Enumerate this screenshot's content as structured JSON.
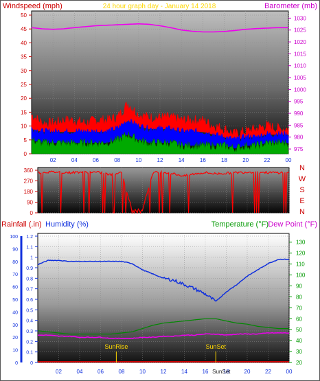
{
  "title": "24 hour graph day - January 14 2018",
  "colors": {
    "wind": "#ff0000",
    "wind_avg": "#0000ff",
    "gust_low": "#00aa00",
    "barometer": "#ee00ee",
    "title": "#ffd700",
    "rain": "#cc0000",
    "humidity": "#1030dd",
    "temperature": "#00aa00",
    "dewpoint": "#ee00ee",
    "sun": "#ffd700"
  },
  "hour_labels": [
    "02",
    "04",
    "06",
    "08",
    "10",
    "12",
    "14",
    "16",
    "18",
    "20",
    "22",
    "00"
  ],
  "chart_data": [
    {
      "type": "line",
      "name_panel": "wind-barometer",
      "labels": {
        "left": "Windspeed (mph)",
        "right": "Barometer (mb)"
      },
      "y_left": {
        "ticks": [
          0,
          5,
          10,
          15,
          20,
          25,
          30,
          35,
          40,
          45,
          50
        ],
        "ylim": [
          0,
          50
        ]
      },
      "y_right": {
        "ticks": [
          975,
          980,
          985,
          990,
          995,
          1000,
          1005,
          1010,
          1015,
          1020,
          1025,
          1030
        ],
        "ylim": [
          973,
          1033
        ]
      },
      "x": [
        0,
        1,
        2,
        3,
        4,
        5,
        6,
        7,
        8,
        9,
        10,
        11,
        12,
        13,
        14,
        15,
        16,
        17,
        18,
        19,
        20,
        21,
        22,
        23,
        24
      ],
      "series": [
        {
          "key": "gust",
          "values": [
            14,
            11,
            11,
            12,
            12,
            11,
            12,
            12,
            13,
            18,
            14,
            13,
            13,
            13,
            12,
            12,
            12,
            10,
            9,
            7,
            8,
            9,
            10,
            9,
            9
          ]
        },
        {
          "key": "average",
          "values": [
            9,
            8,
            8,
            8,
            8,
            8,
            8,
            8,
            9,
            12,
            10,
            9,
            9,
            9,
            8,
            8,
            8,
            7,
            6,
            5,
            6,
            6,
            7,
            7,
            7
          ]
        },
        {
          "key": "low",
          "values": [
            5,
            4,
            4,
            4,
            4,
            4,
            4,
            4,
            5,
            7,
            5,
            4,
            4,
            4,
            3,
            3,
            3,
            3,
            3,
            2,
            3,
            3,
            4,
            4,
            4
          ]
        },
        {
          "key": "barometer",
          "values": [
            1026,
            1025.5,
            1025.3,
            1025.5,
            1026,
            1026.4,
            1026.8,
            1027,
            1027.2,
            1027.4,
            1027.6,
            1027.4,
            1026.8,
            1026,
            1025,
            1024.5,
            1024.2,
            1024.2,
            1024.4,
            1024.8,
            1025.3,
            1025.6,
            1025.8,
            1026,
            1026
          ]
        }
      ]
    },
    {
      "type": "line",
      "name_panel": "wind-direction",
      "y_ticks": [
        0,
        90,
        180,
        270,
        360
      ],
      "ylim": [
        0,
        360
      ],
      "directions": [
        "N",
        "W",
        "S",
        "E",
        "N"
      ],
      "x": [
        0,
        1,
        2,
        3,
        4,
        5,
        6,
        7,
        8,
        9,
        10,
        11,
        12,
        13,
        14,
        15,
        16,
        17,
        18,
        19,
        20,
        21,
        22,
        23,
        24
      ],
      "values": [
        340,
        345,
        345,
        340,
        345,
        345,
        340,
        320,
        345,
        20,
        30,
        340,
        345,
        330,
        310,
        330,
        340,
        330,
        335,
        340,
        345,
        345,
        340,
        340,
        345
      ]
    },
    {
      "type": "line",
      "name_panel": "rain-humidity-temp",
      "labels": {
        "rain": "Rainfall (.in)",
        "humidity": "Humidity (%)",
        "temperature": "Temperature (°F)",
        "dewpoint": "Dew Point (°F)"
      },
      "y_rain": {
        "ticks": [
          0,
          10,
          20,
          30,
          40,
          50,
          60,
          70,
          80,
          90,
          100
        ]
      },
      "y_humidity": {
        "ticks": [
          0,
          0.1,
          0.2,
          0.3,
          0.4,
          0.5,
          0.6,
          0.7,
          0.8,
          0.9,
          1,
          1.1,
          1.2
        ],
        "ylim": [
          0,
          1.2
        ]
      },
      "y_temp": {
        "ticks": [
          20,
          30,
          40,
          50,
          60,
          70,
          80,
          90,
          100,
          110,
          120,
          130
        ],
        "ylim": [
          20,
          138
        ]
      },
      "x": [
        0,
        1,
        2,
        3,
        4,
        5,
        6,
        7,
        8,
        9,
        10,
        11,
        12,
        13,
        14,
        15,
        16,
        17,
        18,
        19,
        20,
        21,
        22,
        23,
        24
      ],
      "series": [
        {
          "key": "humidity",
          "values": [
            93,
            97,
            97,
            96,
            96,
            96,
            96,
            96,
            96,
            94,
            88,
            84,
            80,
            78,
            74,
            70,
            65,
            58,
            67,
            74,
            82,
            88,
            94,
            98,
            98
          ]
        },
        {
          "key": "temperature",
          "values": [
            49,
            48,
            47,
            46,
            46,
            46,
            46,
            46,
            47,
            48,
            51,
            54,
            56,
            57,
            58,
            59,
            60,
            60,
            58,
            56,
            55,
            53,
            52,
            51,
            51
          ]
        },
        {
          "key": "dewpoint",
          "values": [
            45,
            45,
            44,
            44,
            43,
            43,
            43,
            42,
            42,
            42,
            43,
            43,
            44,
            44,
            45,
            45,
            46,
            46,
            45,
            46,
            46,
            46,
            47,
            47,
            47
          ]
        }
      ],
      "sunrise": {
        "label": "SunRise",
        "hour": 7.5
      },
      "sunset": {
        "label": "SunSet",
        "hour": 17.0
      },
      "sunset_axis_label": "SunSet"
    }
  ]
}
